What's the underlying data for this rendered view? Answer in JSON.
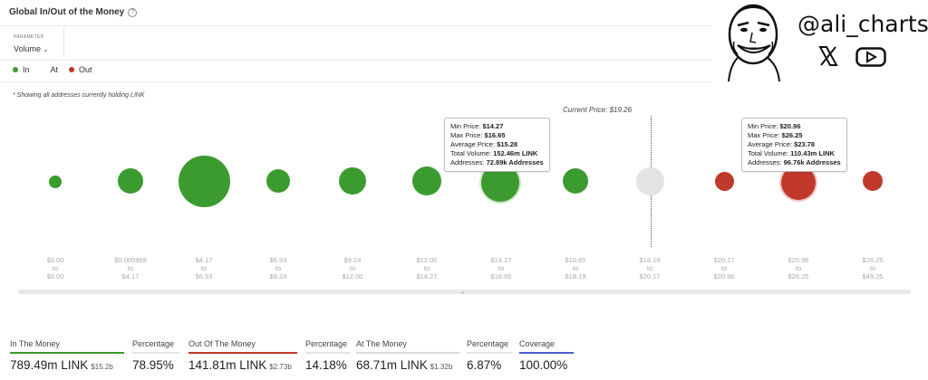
{
  "header": {
    "title": "Global In/Out of the Money",
    "help_icon": "help-circle-icon"
  },
  "parameter": {
    "label": "PARAMETER",
    "value": "Volume"
  },
  "legend": [
    {
      "label": "In",
      "color": "#3b9b2f"
    },
    {
      "label": "At",
      "color": "#ffffff"
    },
    {
      "label": "Out",
      "color": "#c0392b"
    }
  ],
  "note": "* Showing all addresses currently holding LINK",
  "current_price_label": "Current Price: $19.26",
  "branding": {
    "handle": "@ali_charts",
    "icons": [
      "cartoon-face-avatar",
      "x-logo-icon",
      "youtube-icon"
    ]
  },
  "ranges": [
    {
      "from": "$0.00",
      "sep": "to",
      "to": "$0.00"
    },
    {
      "from": "$0.005969",
      "sep": "to",
      "to": "$4.17"
    },
    {
      "from": "$4.17",
      "sep": "to",
      "to": "$6.93"
    },
    {
      "from": "$6.93",
      "sep": "to",
      "to": "$9.24"
    },
    {
      "from": "$9.24",
      "sep": "to",
      "to": "$12.00"
    },
    {
      "from": "$12.00",
      "sep": "to",
      "to": "$14.27"
    },
    {
      "from": "$14.27",
      "sep": "to",
      "to": "$16.65"
    },
    {
      "from": "$16.65",
      "sep": "to",
      "to": "$18.19"
    },
    {
      "from": "$18.19",
      "sep": "to",
      "to": "$20.17"
    },
    {
      "from": "$20.17",
      "sep": "to",
      "to": "$20.96"
    },
    {
      "from": "$20.96",
      "sep": "to",
      "to": "$26.25"
    },
    {
      "from": "$26.25",
      "sep": "to",
      "to": "$49.25"
    }
  ],
  "tooltips": [
    {
      "min_label": "Min Price:",
      "min": "$14.27",
      "max_label": "Max Price:",
      "max": "$16.65",
      "avg_label": "Average Price:",
      "avg": "$15.28",
      "vol_label": "Total Volume:",
      "vol": "152.46m LINK",
      "addr_label": "Addresses:",
      "addr": "72.89k Addresses"
    },
    {
      "min_label": "Min Price:",
      "min": "$20.96",
      "max_label": "Max Price:",
      "max": "$26.25",
      "avg_label": "Average Price:",
      "avg": "$23.78",
      "vol_label": "Total Volume:",
      "vol": "110.43m LINK",
      "addr_label": "Addresses:",
      "addr": "96.76k Addresses"
    }
  ],
  "stats": [
    {
      "label": "In The Money",
      "value": "789.49m LINK",
      "sub": "$15.2b",
      "color": "#3b9b2f"
    },
    {
      "label": "Percentage",
      "value": "78.95%",
      "sub": "",
      "color": "#e3e3e3"
    },
    {
      "label": "Out Of The Money",
      "value": "141.81m LINK",
      "sub": "$2.73b",
      "color": "#c0392b"
    },
    {
      "label": "Percentage",
      "value": "14.18%",
      "sub": "",
      "color": "#e3e3e3"
    },
    {
      "label": "At The Money",
      "value": "68.71m LINK",
      "sub": "$1.32b",
      "color": "#d9d9d9"
    },
    {
      "label": "Percentage",
      "value": "6.87%",
      "sub": "",
      "color": "#e3e3e3"
    },
    {
      "label": "Coverage",
      "value": "100.00%",
      "sub": "",
      "color": "#4a5bd1"
    }
  ],
  "chart_data": {
    "type": "bubble",
    "metric": "Volume",
    "current_price": 19.26,
    "bins": [
      {
        "range": "$0.00 - $0.00",
        "status": "in"
      },
      {
        "range": "$0.005969 - $4.17",
        "status": "in"
      },
      {
        "range": "$4.17 - $6.93",
        "status": "in"
      },
      {
        "range": "$6.93 - $9.24",
        "status": "in"
      },
      {
        "range": "$9.24 - $12.00",
        "status": "in"
      },
      {
        "range": "$12.00 - $14.27",
        "status": "in"
      },
      {
        "range": "$14.27 - $16.65",
        "status": "in",
        "volume": "152.46m LINK",
        "addresses": "72.89k Addresses",
        "avg_price": 15.28
      },
      {
        "range": "$16.65 - $18.19",
        "status": "in"
      },
      {
        "range": "$18.19 - $20.17",
        "status": "at"
      },
      {
        "range": "$20.17 - $20.96",
        "status": "out"
      },
      {
        "range": "$20.96 - $26.25",
        "status": "out",
        "volume": "110.43m LINK",
        "addresses": "96.76k Addresses",
        "avg_price": 23.78
      },
      {
        "range": "$26.25 - $49.25",
        "status": "out"
      }
    ]
  }
}
